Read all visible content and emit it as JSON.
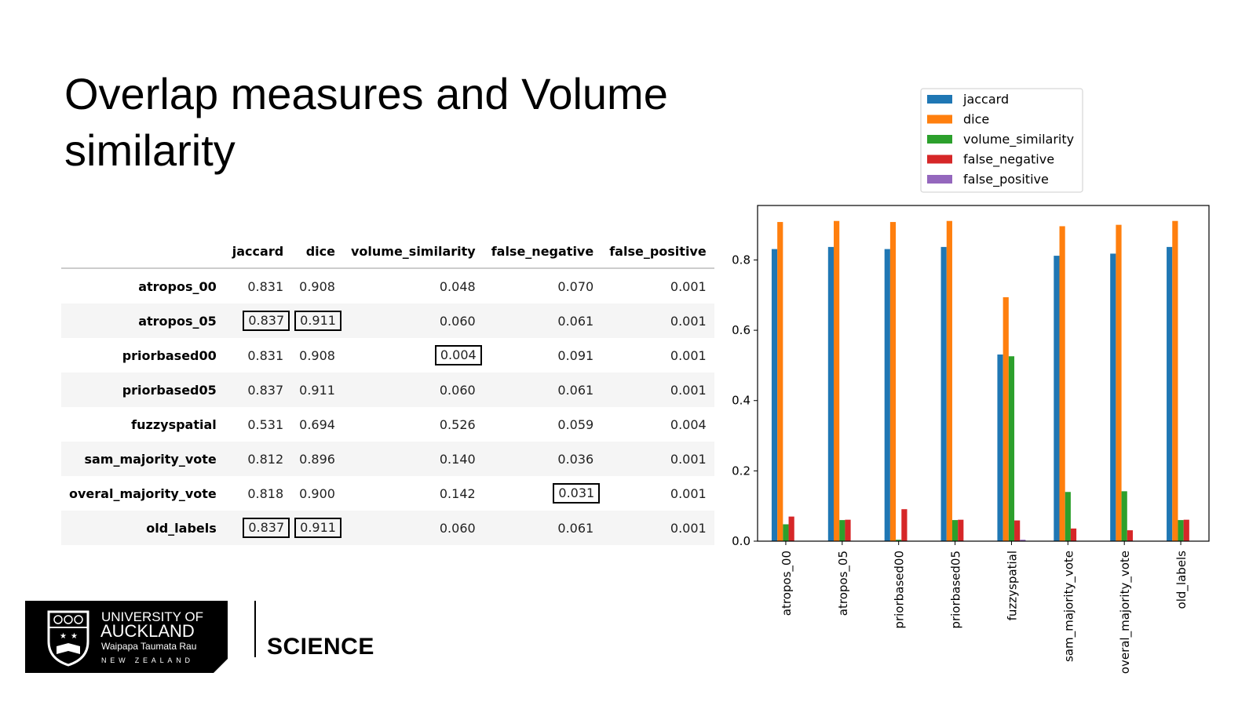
{
  "slide": {
    "title": "Overlap measures and Volume similarity",
    "footer": {
      "logo_lines": [
        "UNIVERSITY OF",
        "AUCKLAND",
        "Waipapa Taumata Rau",
        "NEW ZEALAND"
      ],
      "faculty": "SCIENCE"
    }
  },
  "table": {
    "columns": [
      "jaccard",
      "dice",
      "volume_similarity",
      "false_negative",
      "false_positive"
    ],
    "rows": [
      {
        "label": "atropos_00",
        "cells": [
          "0.831",
          "0.908",
          "0.048",
          "0.070",
          "0.001"
        ],
        "boxed": [
          false,
          false,
          false,
          false,
          false
        ]
      },
      {
        "label": "atropos_05",
        "cells": [
          "0.837",
          "0.911",
          "0.060",
          "0.061",
          "0.001"
        ],
        "boxed": [
          true,
          true,
          false,
          false,
          false
        ]
      },
      {
        "label": "priorbased00",
        "cells": [
          "0.831",
          "0.908",
          "0.004",
          "0.091",
          "0.001"
        ],
        "boxed": [
          false,
          false,
          true,
          false,
          false
        ]
      },
      {
        "label": "priorbased05",
        "cells": [
          "0.837",
          "0.911",
          "0.060",
          "0.061",
          "0.001"
        ],
        "boxed": [
          false,
          false,
          false,
          false,
          false
        ]
      },
      {
        "label": "fuzzyspatial",
        "cells": [
          "0.531",
          "0.694",
          "0.526",
          "0.059",
          "0.004"
        ],
        "boxed": [
          false,
          false,
          false,
          false,
          false
        ]
      },
      {
        "label": "sam_majority_vote",
        "cells": [
          "0.812",
          "0.896",
          "0.140",
          "0.036",
          "0.001"
        ],
        "boxed": [
          false,
          false,
          false,
          false,
          false
        ]
      },
      {
        "label": "overal_majority_vote",
        "cells": [
          "0.818",
          "0.900",
          "0.142",
          "0.031",
          "0.001"
        ],
        "boxed": [
          false,
          false,
          false,
          true,
          false
        ]
      },
      {
        "label": "old_labels",
        "cells": [
          "0.837",
          "0.911",
          "0.060",
          "0.061",
          "0.001"
        ],
        "boxed": [
          true,
          true,
          false,
          false,
          false
        ]
      }
    ]
  },
  "chart_data": {
    "type": "bar",
    "categories": [
      "atropos_00",
      "atropos_05",
      "priorbased00",
      "priorbased05",
      "fuzzyspatial",
      "sam_majority_vote",
      "overal_majority_vote",
      "old_labels"
    ],
    "series": [
      {
        "name": "jaccard",
        "color": "#1f77b4",
        "values": [
          0.831,
          0.837,
          0.831,
          0.837,
          0.531,
          0.812,
          0.818,
          0.837
        ]
      },
      {
        "name": "dice",
        "color": "#ff7f0e",
        "values": [
          0.908,
          0.911,
          0.908,
          0.911,
          0.694,
          0.896,
          0.9,
          0.911
        ]
      },
      {
        "name": "volume_similarity",
        "color": "#2ca02c",
        "values": [
          0.048,
          0.06,
          0.004,
          0.06,
          0.526,
          0.14,
          0.142,
          0.06
        ]
      },
      {
        "name": "false_negative",
        "color": "#d62728",
        "values": [
          0.07,
          0.061,
          0.091,
          0.061,
          0.059,
          0.036,
          0.031,
          0.061
        ]
      },
      {
        "name": "false_positive",
        "color": "#9467bd",
        "values": [
          0.001,
          0.001,
          0.001,
          0.001,
          0.004,
          0.001,
          0.001,
          0.001
        ]
      }
    ],
    "ylim": [
      0,
      0.955
    ],
    "yticks": [
      0.0,
      0.2,
      0.4,
      0.6,
      0.8
    ],
    "ytick_labels": [
      "0.0",
      "0.2",
      "0.4",
      "0.6",
      "0.8"
    ],
    "legend_position": "top-right, above plot",
    "grid": false,
    "title": "",
    "xlabel": "",
    "ylabel": ""
  }
}
